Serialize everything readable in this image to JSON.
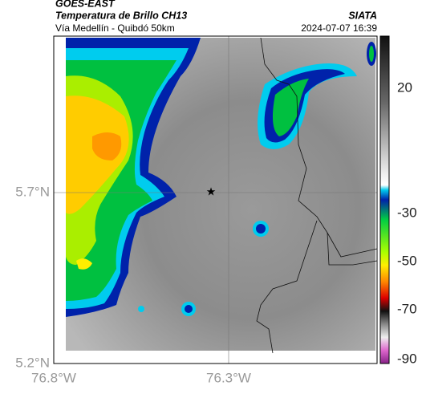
{
  "header": {
    "satellite": "GOES-EAST",
    "title": "Temperatura de Brillo CH13",
    "source": "SIATA",
    "subtitle": "Vía Medellín - Quibdó 50km",
    "timestamp": "2024-07-07 16:39"
  },
  "axes": {
    "latitude_labels": [
      "5.7°N",
      "5.2°N"
    ],
    "longitude_labels": [
      "76.8°W",
      "76.3°W"
    ]
  },
  "colorbar": {
    "tick_labels": [
      20,
      -30,
      -50,
      -70,
      -90
    ]
  }
}
